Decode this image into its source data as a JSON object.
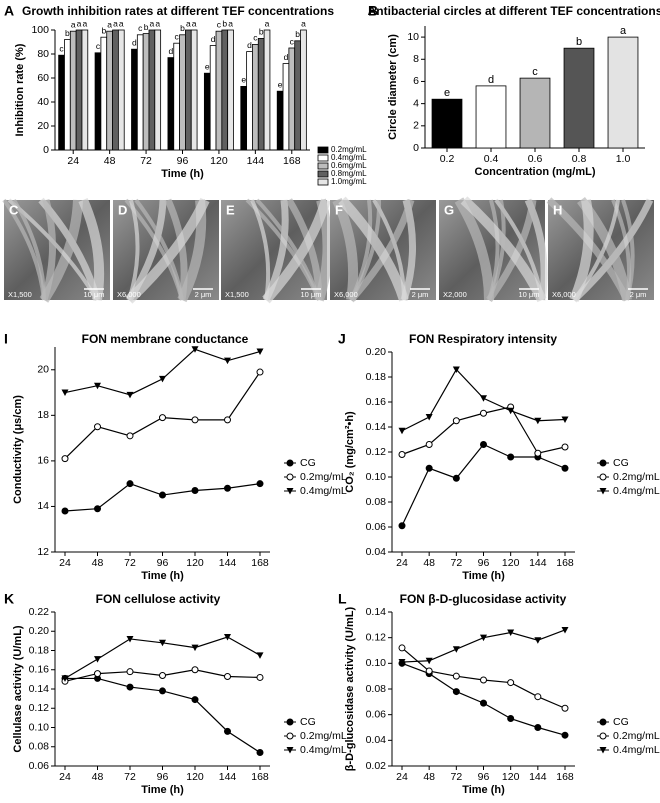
{
  "chart_data": [
    {
      "type": "bar",
      "label": "A",
      "title": "Growth inhibition rates at different TEF concentrations",
      "x_label": "Time (h)",
      "y_label": "Inhibition rate (%)",
      "categories": [
        "24",
        "48",
        "72",
        "96",
        "120",
        "144",
        "168"
      ],
      "ylim": [
        0,
        100
      ],
      "yticks": [
        0,
        20,
        40,
        60,
        80,
        100
      ],
      "series": [
        {
          "name": "0.2mg/mL",
          "color": "#000000",
          "values": [
            79,
            81,
            84,
            77,
            64,
            53,
            49
          ],
          "letters": [
            "c",
            "c",
            "d",
            "d",
            "e",
            "e",
            "e"
          ]
        },
        {
          "name": "0.4mg/mL",
          "color": "#ffffff",
          "values": [
            92,
            94,
            96,
            89,
            87,
            82,
            72
          ],
          "letters": [
            "b",
            "b",
            "c",
            "c",
            "d",
            "d",
            "d"
          ]
        },
        {
          "name": "0.6mg/mL",
          "color": "#bdbdbd",
          "values": [
            99,
            99,
            97,
            96,
            99,
            88,
            85
          ],
          "letters": [
            "a",
            "a",
            "b",
            "b",
            "c",
            "c",
            "c"
          ]
        },
        {
          "name": "0.8mg/mL",
          "color": "#606060",
          "values": [
            100,
            100,
            100,
            100,
            100,
            93,
            91
          ],
          "letters": [
            "a",
            "a",
            "a",
            "a",
            "b",
            "b",
            "b"
          ]
        },
        {
          "name": "1.0mg/mL",
          "color": "#e6e6e6",
          "values": [
            100,
            100,
            100,
            100,
            100,
            100,
            100
          ],
          "letters": [
            "a",
            "a",
            "a",
            "a",
            "a",
            "a",
            "a"
          ]
        }
      ]
    },
    {
      "type": "bar",
      "label": "B",
      "title": "Antibacterial circles at different TEF concentrations",
      "x_label": "Concentration (mg/mL)",
      "y_label": "Circle diameter (cm)",
      "categories": [
        "0.2",
        "0.4",
        "0.6",
        "0.8",
        "1.0"
      ],
      "ylim": [
        0,
        11
      ],
      "yticks": [
        0,
        2,
        4,
        6,
        8,
        10
      ],
      "series": [
        {
          "colors": [
            "#000000",
            "#ffffff",
            "#b5b5b5",
            "#555555",
            "#e3e3e3"
          ],
          "values": [
            4.4,
            5.6,
            6.3,
            9.0,
            10.0
          ],
          "letters": [
            "e",
            "d",
            "c",
            "b",
            "a"
          ]
        }
      ]
    },
    {
      "type": "line",
      "label": "I",
      "title": "FON membrane conductance",
      "x_label": "Time (h)",
      "y_label": "Conductivity (μs/cm)",
      "categories": [
        "24",
        "48",
        "72",
        "96",
        "120",
        "144",
        "168"
      ],
      "ylim": [
        12,
        21
      ],
      "yticks": [
        12,
        14,
        16,
        18,
        20
      ],
      "series": [
        {
          "name": "CG",
          "marker": "circle",
          "values": [
            13.8,
            13.9,
            15.0,
            14.5,
            14.7,
            14.8,
            15.0
          ]
        },
        {
          "name": "0.2mg/mL",
          "marker": "open-circle",
          "values": [
            16.1,
            17.5,
            17.1,
            17.9,
            17.8,
            17.8,
            19.9
          ]
        },
        {
          "name": "0.4mg/mL",
          "marker": "triangle-down",
          "values": [
            19.0,
            19.3,
            18.9,
            19.6,
            20.9,
            20.4,
            20.8
          ]
        }
      ]
    },
    {
      "type": "line",
      "label": "J",
      "title": "FON Respiratory intensity",
      "x_label": "Time (h)",
      "y_label": "CO₂ (mg/cm²•h)",
      "categories": [
        "24",
        "48",
        "72",
        "96",
        "120",
        "144",
        "168"
      ],
      "ylim": [
        0.04,
        0.2
      ],
      "yticks": [
        0.04,
        0.06,
        0.08,
        {
          "value": 0.1,
          "label": "0.10"
        },
        0.12,
        0.14,
        0.16,
        0.18,
        {
          "value": 0.2,
          "label": "0.20"
        }
      ],
      "series": [
        {
          "name": "CG",
          "marker": "circle",
          "values": [
            0.061,
            0.107,
            0.099,
            0.126,
            0.116,
            0.116,
            0.107
          ]
        },
        {
          "name": "0.2mg/mL",
          "marker": "open-circle",
          "values": [
            0.118,
            0.126,
            0.145,
            0.151,
            0.156,
            0.119,
            0.124
          ]
        },
        {
          "name": "0.4mg/mL",
          "marker": "triangle-down",
          "values": [
            0.137,
            0.148,
            0.186,
            0.163,
            0.153,
            0.145,
            0.146
          ]
        }
      ]
    },
    {
      "type": "line",
      "label": "K",
      "title": "FON cellulose activity",
      "x_label": "Time (h)",
      "y_label": "Cellulase activity (U/mL)",
      "categories": [
        "24",
        "48",
        "72",
        "96",
        "120",
        "144",
        "168"
      ],
      "ylim": [
        0.06,
        0.22
      ],
      "yticks": [
        0.06,
        0.08,
        {
          "value": 0.1,
          "label": "0.10"
        },
        0.12,
        0.14,
        0.16,
        0.18,
        {
          "value": 0.2,
          "label": "0.20"
        },
        0.22
      ],
      "series": [
        {
          "name": "CG",
          "marker": "circle",
          "values": [
            0.151,
            0.151,
            0.142,
            0.138,
            0.129,
            0.096,
            0.074
          ]
        },
        {
          "name": "0.2mg/mL",
          "marker": "open-circle",
          "values": [
            0.148,
            0.156,
            0.158,
            0.154,
            0.16,
            0.153,
            0.152
          ]
        },
        {
          "name": "0.4mg/mL",
          "marker": "triangle-down",
          "values": [
            0.151,
            0.171,
            0.192,
            0.188,
            0.183,
            0.194,
            0.175
          ]
        }
      ]
    },
    {
      "type": "line",
      "label": "L",
      "title": "FON β-D-glucosidase activity",
      "x_label": "Time (h)",
      "y_label": "β-D-glucosidase activity (U/mL)",
      "categories": [
        "24",
        "48",
        "72",
        "96",
        "120",
        "144",
        "168"
      ],
      "ylim": [
        0.02,
        0.14
      ],
      "yticks": [
        0.02,
        0.04,
        0.06,
        0.08,
        {
          "value": 0.1,
          "label": "0.10"
        },
        0.12,
        0.14
      ],
      "series": [
        {
          "name": "CG",
          "marker": "circle",
          "values": [
            0.1,
            0.092,
            0.078,
            0.069,
            0.057,
            0.05,
            0.044
          ]
        },
        {
          "name": "0.2mg/mL",
          "marker": "open-circle",
          "values": [
            0.112,
            0.094,
            0.09,
            0.087,
            0.085,
            0.074,
            0.065
          ]
        },
        {
          "name": "0.4mg/mL",
          "marker": "triangle-down",
          "values": [
            0.101,
            0.102,
            0.111,
            0.12,
            0.124,
            0.118,
            0.126
          ]
        }
      ]
    }
  ],
  "micrographs": [
    {
      "label": "C",
      "magnification": "X1,500",
      "scale": "10 μm"
    },
    {
      "label": "D",
      "magnification": "X6,000",
      "scale": "2 μm"
    },
    {
      "label": "E",
      "magnification": "X1,500",
      "scale": "10 μm"
    },
    {
      "label": "F",
      "magnification": "X6,000",
      "scale": "2 μm"
    },
    {
      "label": "G",
      "magnification": "X2,000",
      "scale": "10 μm"
    },
    {
      "label": "H",
      "magnification": "X6,000",
      "scale": "2 μm"
    }
  ]
}
